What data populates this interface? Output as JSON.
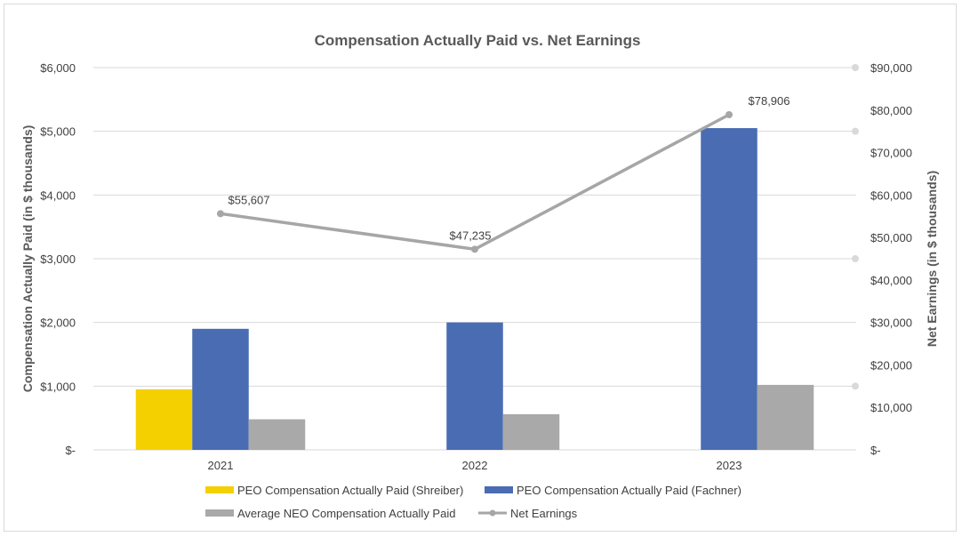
{
  "chart_data": {
    "type": "bar",
    "title": "Compensation Actually Paid vs. Net Earnings",
    "categories": [
      "2021",
      "2022",
      "2023"
    ],
    "ylabel": "Compensation Actually Paid (in $ thousands)",
    "y2label": "Net Earnings (in $ thousands)",
    "ylim": [
      0,
      6000
    ],
    "y2lim": [
      0,
      90000
    ],
    "yticks": [
      0,
      1000,
      2000,
      3000,
      4000,
      5000,
      6000
    ],
    "ytick_labels": [
      "$-",
      "$1,000",
      "$2,000",
      "$3,000",
      "$4,000",
      "$5,000",
      "$6,000"
    ],
    "y2ticks": [
      0,
      10000,
      20000,
      30000,
      40000,
      50000,
      60000,
      70000,
      80000,
      90000
    ],
    "y2tick_labels": [
      "$-",
      "$10,000",
      "$20,000",
      "$30,000",
      "$40,000",
      "$50,000",
      "$60,000",
      "$70,000",
      "$80,000",
      "$90,000"
    ],
    "y2_marker_ticks": [
      15000,
      45000,
      75000,
      90000
    ],
    "grid": true,
    "legend_position": "bottom",
    "series": [
      {
        "name": "PEO Compensation Actually Paid (Shreiber)",
        "kind": "bar",
        "axis": "left",
        "color": "#f5d000",
        "values": [
          950,
          null,
          null
        ]
      },
      {
        "name": "PEO Compensation Actually Paid (Fachner)",
        "kind": "bar",
        "axis": "left",
        "color": "#4a6cb3",
        "values": [
          1900,
          2000,
          5050
        ]
      },
      {
        "name": "Average NEO Compensation Actually Paid",
        "kind": "bar",
        "axis": "left",
        "color": "#a9a9a9",
        "values": [
          480,
          560,
          1020
        ]
      },
      {
        "name": "Net Earnings",
        "kind": "line",
        "axis": "right",
        "color": "#a6a6a6",
        "values": [
          55607,
          47235,
          78906
        ],
        "labels": [
          "$55,607",
          "$47,235",
          "$78,906"
        ]
      }
    ]
  }
}
